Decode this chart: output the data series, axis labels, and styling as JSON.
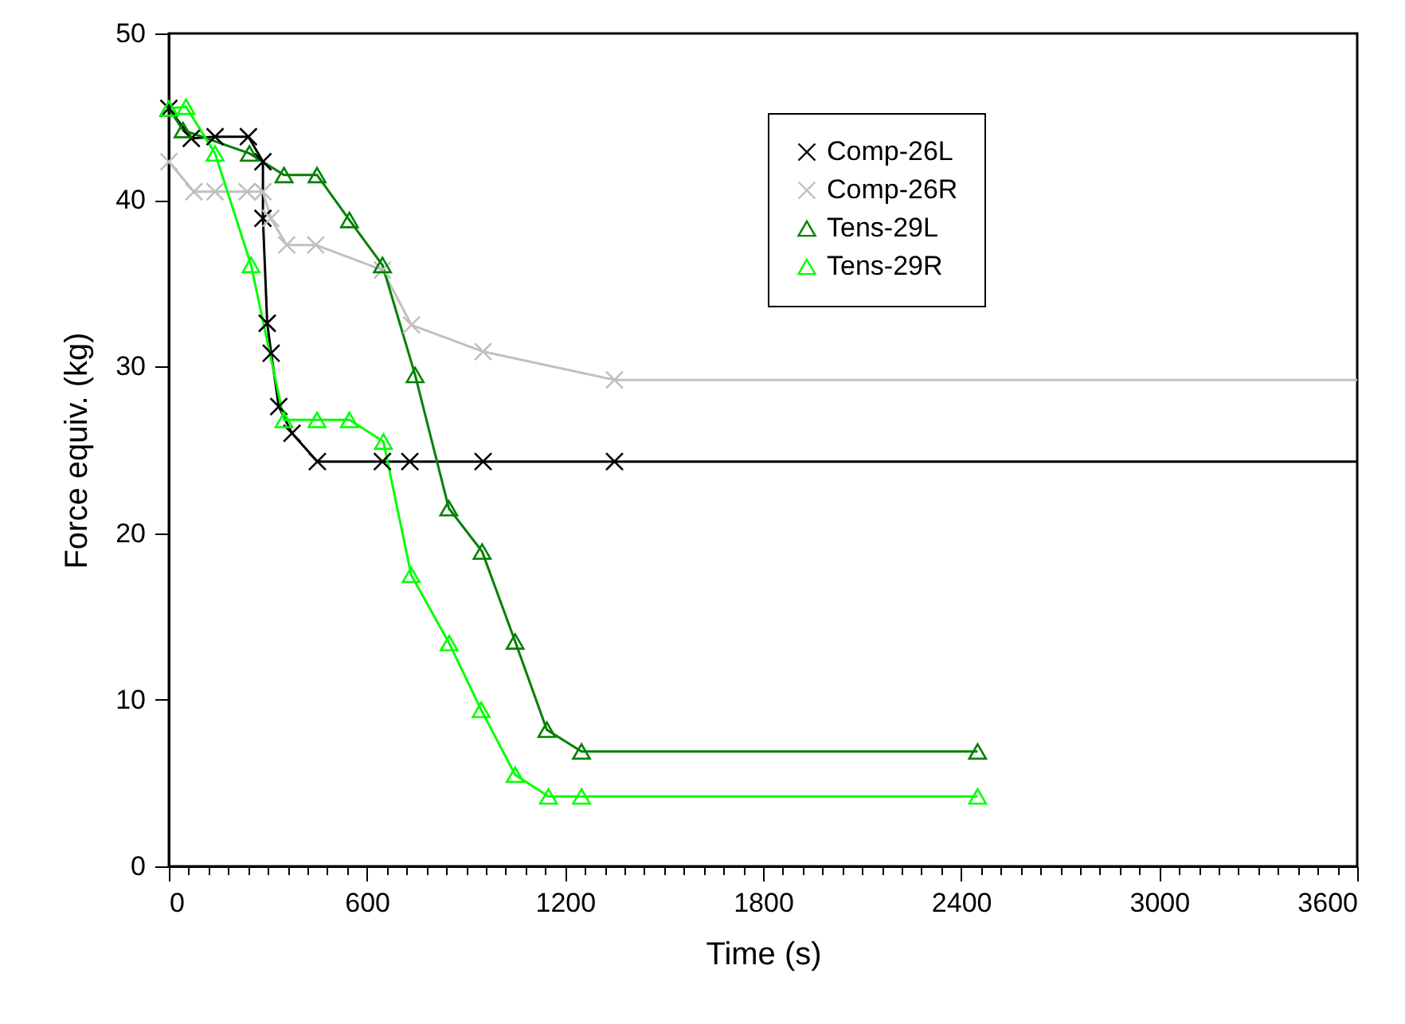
{
  "chart_data": {
    "type": "line",
    "xlabel": "Time (s)",
    "ylabel": "Force equiv. (kg)",
    "xlim": [
      0,
      3600
    ],
    "ylim": [
      0,
      50
    ],
    "xticks": [
      0,
      {
        "value": 60,
        "label": null
      },
      {
        "value": 120,
        "label": null
      },
      {
        "value": 180,
        "label": null
      },
      {
        "value": 240,
        "label": null
      },
      {
        "value": 300,
        "label": null
      },
      {
        "value": 360,
        "label": null
      },
      {
        "value": 420,
        "label": null
      },
      {
        "value": 480,
        "label": null
      },
      {
        "value": 540,
        "label": null
      },
      600,
      {
        "value": 660,
        "label": null
      },
      {
        "value": 720,
        "label": null
      },
      {
        "value": 780,
        "label": null
      },
      {
        "value": 840,
        "label": null
      },
      {
        "value": 900,
        "label": null
      },
      {
        "value": 960,
        "label": null
      },
      {
        "value": 1020,
        "label": null
      },
      {
        "value": 1080,
        "label": null
      },
      {
        "value": 1140,
        "label": null
      },
      1200,
      {
        "value": 1260,
        "label": null
      },
      {
        "value": 1320,
        "label": null
      },
      {
        "value": 1380,
        "label": null
      },
      {
        "value": 1440,
        "label": null
      },
      {
        "value": 1500,
        "label": null
      },
      {
        "value": 1560,
        "label": null
      },
      {
        "value": 1620,
        "label": null
      },
      {
        "value": 1680,
        "label": null
      },
      {
        "value": 1740,
        "label": null
      },
      1800,
      {
        "value": 1860,
        "label": null
      },
      {
        "value": 1920,
        "label": null
      },
      {
        "value": 1980,
        "label": null
      },
      {
        "value": 2040,
        "label": null
      },
      {
        "value": 2100,
        "label": null
      },
      {
        "value": 2160,
        "label": null
      },
      {
        "value": 2220,
        "label": null
      },
      {
        "value": 2280,
        "label": null
      },
      {
        "value": 2340,
        "label": null
      },
      2400,
      {
        "value": 2460,
        "label": null
      },
      {
        "value": 2520,
        "label": null
      },
      {
        "value": 2580,
        "label": null
      },
      {
        "value": 2640,
        "label": null
      },
      {
        "value": 2700,
        "label": null
      },
      {
        "value": 2760,
        "label": null
      },
      {
        "value": 2820,
        "label": null
      },
      {
        "value": 2880,
        "label": null
      },
      {
        "value": 2940,
        "label": null
      },
      3000,
      {
        "value": 3060,
        "label": null
      },
      {
        "value": 3120,
        "label": null
      },
      {
        "value": 3180,
        "label": null
      },
      {
        "value": 3240,
        "label": null
      },
      {
        "value": 3300,
        "label": null
      },
      {
        "value": 3360,
        "label": null
      },
      {
        "value": 3420,
        "label": null
      },
      {
        "value": 3480,
        "label": null
      },
      {
        "value": 3540,
        "label": null
      },
      3600
    ],
    "yticks": [
      0,
      10,
      20,
      30,
      40,
      50
    ],
    "grid": false,
    "legend": "top right",
    "line_style": "solid",
    "series": [
      {
        "name": "Comp-26L",
        "color": "#000000",
        "marker": "cross",
        "x": [
          0,
          68,
          140,
          241,
          285,
          285,
          298,
          310,
          333,
          373,
          450,
          647,
          730,
          952,
          1350,
          3600
        ],
        "values": [
          45.5,
          43.7,
          43.8,
          43.8,
          42.3,
          38.9,
          32.6,
          30.8,
          27.6,
          26.0,
          24.3,
          24.3,
          24.3,
          24.3,
          24.3,
          24.3
        ]
      },
      {
        "name": "Comp-26R",
        "color": "#c0c0c0",
        "marker": "cross",
        "x": [
          0,
          76,
          140,
          237,
          285,
          309,
          357,
          445,
          647,
          735,
          952,
          1350,
          3600
        ],
        "values": [
          42.3,
          40.5,
          40.5,
          40.5,
          40.5,
          38.9,
          37.3,
          37.3,
          35.8,
          32.5,
          30.9,
          29.2,
          29.2
        ]
      },
      {
        "name": "Tens-29L",
        "color": "#008000",
        "marker": "triangle",
        "x": [
          0,
          43,
          244,
          349,
          449,
          547,
          647,
          746,
          848,
          949,
          1049,
          1145,
          1250,
          2450
        ],
        "values": [
          45.5,
          44.2,
          42.8,
          41.5,
          41.5,
          38.8,
          36.1,
          29.5,
          21.5,
          18.9,
          13.5,
          8.2,
          6.9,
          6.9
        ]
      },
      {
        "name": "Tens-29R",
        "color": "#00ff00",
        "marker": "triangle",
        "x": [
          0,
          52,
          140,
          249,
          349,
          449,
          547,
          650,
          734,
          849,
          946,
          1049,
          1150,
          1250,
          2450
        ],
        "values": [
          45.5,
          45.6,
          42.8,
          36.1,
          26.8,
          26.8,
          26.8,
          25.5,
          17.5,
          13.4,
          9.4,
          5.5,
          4.2,
          4.2,
          4.2
        ]
      }
    ]
  }
}
